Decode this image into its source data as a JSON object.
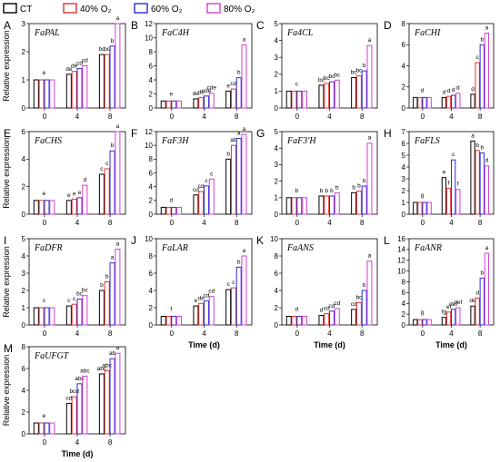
{
  "legend": [
    {
      "label": "CT",
      "color": "#000000"
    },
    {
      "label": "40% O₂",
      "color": "#e03030"
    },
    {
      "label": "60% O₂",
      "color": "#2a2ad8"
    },
    {
      "label": "80% O₂",
      "color": "#d23fd2"
    }
  ],
  "y_axis_label": "Relative expression",
  "x_axis_label": "Time (d)",
  "chart_data": [
    {
      "type": "bar",
      "panel": "A",
      "title": "FaPAL",
      "categories": [
        "0",
        "4",
        "8"
      ],
      "ylim": [
        0,
        3
      ],
      "yticks": [
        0,
        1,
        2,
        3
      ],
      "series": [
        [
          1,
          1.2,
          1.9
        ],
        [
          1,
          1.3,
          1.9
        ],
        [
          1,
          1.4,
          2.2
        ],
        [
          1,
          1.5,
          3.0
        ]
      ],
      "letters": [
        [
          "e",
          "de",
          "bc"
        ],
        [
          "",
          "de",
          "bc"
        ],
        [
          "",
          "cd",
          "b"
        ],
        [
          "",
          "cd",
          "a"
        ]
      ]
    },
    {
      "type": "bar",
      "panel": "B",
      "title": "FaC4H",
      "categories": [
        "0",
        "4",
        "8"
      ],
      "ylim": [
        0,
        12
      ],
      "yticks": [
        0,
        2,
        4,
        6,
        8,
        10,
        12
      ],
      "series": [
        [
          1,
          1.3,
          2.4
        ],
        [
          1,
          1.5,
          2.7
        ],
        [
          1,
          1.7,
          4.3
        ],
        [
          1,
          2.1,
          9.0
        ]
      ],
      "letters": [
        [
          "e",
          "de",
          "e"
        ],
        [
          "",
          "de",
          "cd"
        ],
        [
          "",
          "cde",
          "b"
        ],
        [
          "",
          "cde",
          "a"
        ]
      ]
    },
    {
      "type": "bar",
      "panel": "C",
      "title": "Fa4CL",
      "categories": [
        "0",
        "4",
        "8"
      ],
      "ylim": [
        0,
        5
      ],
      "yticks": [
        0,
        1,
        2,
        3,
        4,
        5
      ],
      "series": [
        [
          1,
          1.35,
          1.8
        ],
        [
          1,
          1.45,
          1.9
        ],
        [
          1,
          1.55,
          2.2
        ],
        [
          1,
          1.65,
          3.7
        ]
      ],
      "letters": [
        [
          "c",
          "bc",
          "bc"
        ],
        [
          "",
          "bc",
          "bc"
        ],
        [
          "",
          "bc",
          "b"
        ],
        [
          "",
          "bc",
          "a"
        ]
      ]
    },
    {
      "type": "bar",
      "panel": "D",
      "title": "FaCHI",
      "categories": [
        "0",
        "4",
        "8"
      ],
      "ylim": [
        0,
        8
      ],
      "yticks": [
        0,
        2,
        4,
        6,
        8
      ],
      "series": [
        [
          1,
          1,
          1.3
        ],
        [
          1,
          1.1,
          4.3
        ],
        [
          1,
          1.2,
          6.0
        ],
        [
          1,
          1.4,
          7.1
        ]
      ],
      "letters": [
        [
          "d",
          "d",
          "d"
        ],
        [
          "",
          "d",
          "c"
        ],
        [
          "",
          "d",
          "b"
        ],
        [
          "",
          "d",
          "a"
        ]
      ]
    },
    {
      "type": "bar",
      "panel": "E",
      "title": "FaCHS",
      "categories": [
        "0",
        "4",
        "8"
      ],
      "ylim": [
        0,
        6
      ],
      "yticks": [
        0,
        2,
        4,
        6
      ],
      "series": [
        [
          1,
          1,
          2.9
        ],
        [
          1,
          1.1,
          3.3
        ],
        [
          1,
          1.2,
          4.6
        ],
        [
          1,
          2.1,
          6.0
        ]
      ],
      "letters": [
        [
          "e",
          "e",
          "c"
        ],
        [
          "",
          "e",
          "c"
        ],
        [
          "",
          "e",
          "b"
        ],
        [
          "",
          "d",
          "a"
        ]
      ]
    },
    {
      "type": "bar",
      "panel": "F",
      "title": "FaF3H",
      "categories": [
        "0",
        "4",
        "8"
      ],
      "ylim": [
        0,
        12
      ],
      "yticks": [
        0,
        2,
        4,
        6,
        8,
        10,
        12
      ],
      "series": [
        [
          1,
          2.8,
          8.0
        ],
        [
          1,
          3.3,
          10.0
        ],
        [
          1,
          4.1,
          11.0
        ],
        [
          1,
          5.1,
          11.6
        ]
      ],
      "letters": [
        [
          "d",
          "cd",
          "b"
        ],
        [
          "",
          "cd",
          "ab"
        ],
        [
          "",
          "c",
          "a"
        ],
        [
          "",
          "c",
          "a"
        ]
      ]
    },
    {
      "type": "bar",
      "panel": "G",
      "title": "FaF3'H",
      "categories": [
        "0",
        "4",
        "8"
      ],
      "ylim": [
        0,
        5
      ],
      "yticks": [
        0,
        1,
        2,
        3,
        4,
        5
      ],
      "series": [
        [
          1,
          1.1,
          1.3
        ],
        [
          1,
          1.1,
          1.4
        ],
        [
          1,
          1.1,
          1.7
        ],
        [
          1,
          1.3,
          4.3
        ]
      ],
      "letters": [
        [
          "b",
          "b",
          "b"
        ],
        [
          "",
          "b",
          "b"
        ],
        [
          "",
          "b",
          "b"
        ],
        [
          "",
          "b",
          "a"
        ]
      ]
    },
    {
      "type": "bar",
      "panel": "H",
      "title": "FaFLS",
      "categories": [
        "0",
        "4",
        "8"
      ],
      "ylim": [
        0,
        7
      ],
      "yticks": [
        0,
        1,
        2,
        3,
        4,
        5,
        6,
        7
      ],
      "series": [
        [
          1,
          3.1,
          6.2
        ],
        [
          1,
          2.2,
          5.4
        ],
        [
          1,
          4.6,
          5.2
        ],
        [
          1,
          2.1,
          4.1
        ]
      ],
      "letters": [
        [
          "g",
          "e",
          "a"
        ],
        [
          "",
          "f",
          "b"
        ],
        [
          "",
          "c",
          "b"
        ],
        [
          "",
          "f",
          "d"
        ]
      ]
    },
    {
      "type": "bar",
      "panel": "I",
      "title": "FaDFR",
      "categories": [
        "0",
        "4",
        "8"
      ],
      "ylim": [
        0,
        5
      ],
      "yticks": [
        0,
        1,
        2,
        3,
        4,
        5
      ],
      "series": [
        [
          1,
          1.1,
          2.0
        ],
        [
          1,
          1.2,
          2.5
        ],
        [
          1,
          1.5,
          3.6
        ],
        [
          1,
          1.7,
          4.4
        ]
      ],
      "letters": [
        [
          "c",
          "c",
          "b"
        ],
        [
          "",
          "c",
          "b"
        ],
        [
          "",
          "bc",
          "a"
        ],
        [
          "",
          "bc",
          "a"
        ]
      ]
    },
    {
      "type": "bar",
      "panel": "J",
      "title": "FaLAR",
      "categories": [
        "0",
        "4",
        "8"
      ],
      "ylim": [
        0,
        10
      ],
      "yticks": [
        0,
        2,
        4,
        6,
        8,
        10
      ],
      "series": [
        [
          1,
          2.2,
          4.1
        ],
        [
          1,
          2.5,
          4.3
        ],
        [
          1,
          2.8,
          6.7
        ],
        [
          1,
          3.3,
          8.0
        ]
      ],
      "letters": [
        [
          "f",
          "e",
          "c"
        ],
        [
          "",
          "de",
          "c"
        ],
        [
          "",
          "cd",
          "b"
        ],
        [
          "",
          "cd",
          "a"
        ]
      ]
    },
    {
      "type": "bar",
      "panel": "K",
      "title": "FaANS",
      "categories": [
        "0",
        "4",
        "8"
      ],
      "ylim": [
        0,
        10
      ],
      "yticks": [
        0,
        2,
        4,
        6,
        8,
        10
      ],
      "series": [
        [
          1,
          1.1,
          1.8
        ],
        [
          1,
          1.3,
          2.6
        ],
        [
          1,
          1.6,
          4.0
        ],
        [
          1,
          1.9,
          7.4
        ]
      ],
      "letters": [
        [
          "d",
          "d",
          "cd"
        ],
        [
          "",
          "cd",
          "bc"
        ],
        [
          "",
          "cd",
          "b"
        ],
        [
          "",
          "cd",
          "a"
        ]
      ]
    },
    {
      "type": "bar",
      "panel": "L",
      "title": "FaANR",
      "categories": [
        "0",
        "4",
        "8"
      ],
      "ylim": [
        0,
        16
      ],
      "yticks": [
        0,
        2,
        4,
        6,
        8,
        10,
        12,
        14,
        16
      ],
      "series": [
        [
          1,
          1.4,
          3.5
        ],
        [
          1,
          2.4,
          5.0
        ],
        [
          1,
          2.9,
          8.7
        ],
        [
          1,
          3.2,
          13.3
        ]
      ],
      "letters": [
        [
          "g",
          "fg",
          "de"
        ],
        [
          "",
          "ef",
          "d"
        ],
        [
          "",
          "def",
          "b"
        ],
        [
          "",
          "def",
          "a"
        ]
      ]
    },
    {
      "type": "bar",
      "panel": "M",
      "title": "FaUFGT",
      "categories": [
        "0",
        "4",
        "8"
      ],
      "ylim": [
        0,
        8
      ],
      "yticks": [
        0,
        2,
        4,
        6,
        8
      ],
      "series": [
        [
          1,
          2.8,
          5.5
        ],
        [
          1,
          3.4,
          5.8
        ],
        [
          1,
          4.6,
          6.9
        ],
        [
          1,
          5.3,
          7.4
        ]
      ],
      "letters": [
        [
          "e",
          "cd",
          "abc"
        ],
        [
          "",
          "bcd",
          "abc"
        ],
        [
          "",
          "abc",
          "ab"
        ],
        [
          "",
          "abc",
          "a"
        ]
      ]
    }
  ]
}
